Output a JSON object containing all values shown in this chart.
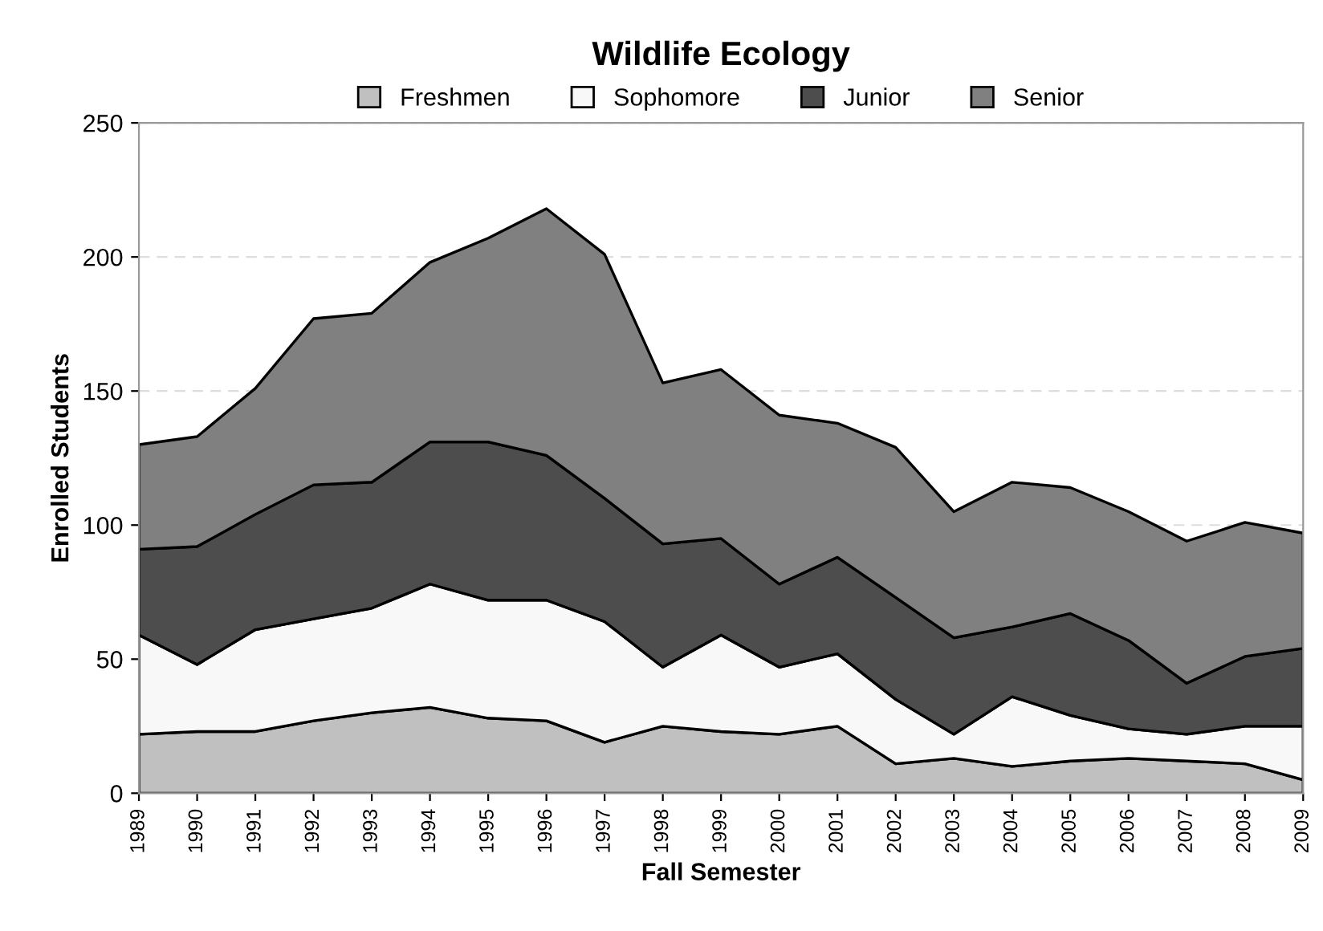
{
  "chart_data": {
    "type": "area",
    "stacked": true,
    "title": "Wildlife Ecology",
    "xlabel": "Fall Semester",
    "ylabel": "Enrolled Students",
    "categories": [
      "1989",
      "1990",
      "1991",
      "1992",
      "1993",
      "1994",
      "1995",
      "1996",
      "1997",
      "1998",
      "1999",
      "2000",
      "2001",
      "2002",
      "2003",
      "2004",
      "2005",
      "2006",
      "2007",
      "2008",
      "2009"
    ],
    "series": [
      {
        "name": "Freshmen",
        "color": "#c0c0c0",
        "values": [
          22,
          23,
          23,
          27,
          30,
          32,
          28,
          27,
          19,
          25,
          23,
          22,
          25,
          11,
          13,
          10,
          12,
          13,
          12,
          11,
          5
        ]
      },
      {
        "name": "Sophomore",
        "color": "#f8f8f8",
        "values": [
          37,
          25,
          38,
          38,
          39,
          46,
          44,
          45,
          45,
          22,
          36,
          25,
          27,
          24,
          9,
          26,
          17,
          11,
          10,
          14,
          20
        ]
      },
      {
        "name": "Junior",
        "color": "#4d4d4d",
        "values": [
          32,
          44,
          43,
          50,
          47,
          53,
          59,
          54,
          46,
          46,
          36,
          31,
          36,
          38,
          36,
          26,
          38,
          33,
          19,
          26,
          29
        ]
      },
      {
        "name": "Senior",
        "color": "#808080",
        "values": [
          39,
          41,
          47,
          62,
          63,
          67,
          76,
          92,
          91,
          60,
          63,
          63,
          50,
          56,
          47,
          54,
          47,
          48,
          53,
          50,
          43
        ]
      }
    ],
    "ylim": [
      0,
      250
    ],
    "yticks": [
      0,
      50,
      100,
      150,
      200,
      250
    ],
    "grid": "y",
    "legend": "top"
  }
}
